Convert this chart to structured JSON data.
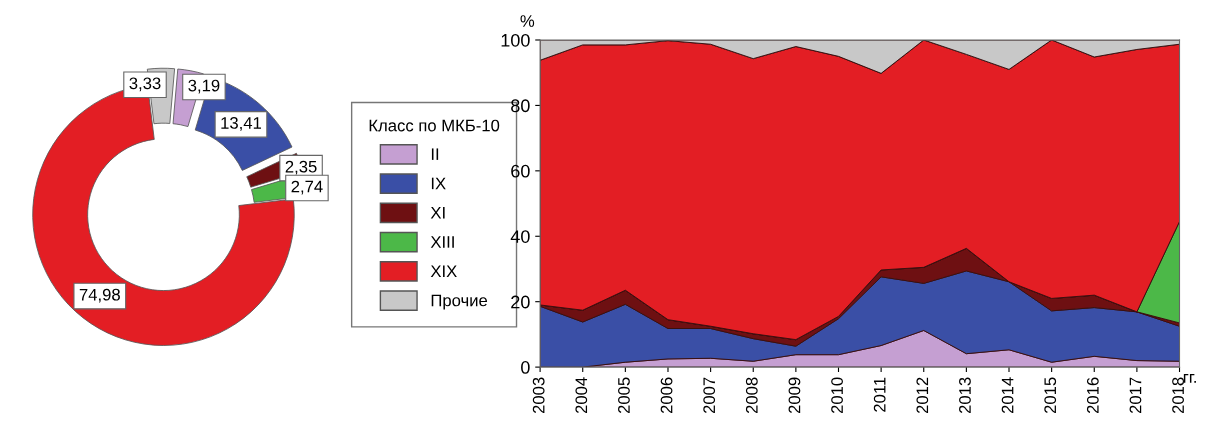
{
  "chart_data": [
    {
      "type": "donut",
      "legend_title": "Класс по МКБ-10",
      "legend": "right",
      "categories": [
        "II",
        "IX",
        "XI",
        "XIII",
        "XIX",
        "Прочие"
      ],
      "values": [
        3.19,
        13.41,
        2.35,
        2.74,
        74.98,
        3.33
      ],
      "colors": [
        "#c59fd2",
        "#3a4fa6",
        "#6e1012",
        "#4cb848",
        "#e31e24",
        "#c8c8c8"
      ],
      "value_labels": [
        "3,19",
        "13,41",
        "2,35",
        "2,74",
        "74,98",
        "3,33"
      ]
    },
    {
      "type": "area",
      "stacked": true,
      "ylabel": "%",
      "xlabel": "гг.",
      "ylim": [
        0,
        100
      ],
      "yticks": [
        0,
        20,
        40,
        60,
        80,
        100
      ],
      "grid": false,
      "categories": [
        "2003",
        "2004",
        "2005",
        "2006",
        "2007",
        "2008",
        "2009",
        "2010",
        "2011",
        "2012",
        "2013",
        "2014",
        "2015",
        "2016",
        "2017",
        "2018"
      ],
      "series": [
        {
          "color": "#c59fd2",
          "values": [
            0,
            0,
            1.5,
            2.5,
            2.7,
            1.8,
            3.8,
            3.8,
            6.6,
            11.2,
            4.1,
            5.3,
            1.5,
            3.3,
            2.0,
            1.8
          ]
        },
        {
          "color": "#3a4fa6",
          "values": [
            18.6,
            13.8,
            17.7,
            9.3,
            9.1,
            6.9,
            2.6,
            11.0,
            21.0,
            14.4,
            25.3,
            20.8,
            15.7,
            14.9,
            14.9,
            10.7
          ]
        },
        {
          "color": "#6e1012",
          "values": [
            0.4,
            3.6,
            4.3,
            2.7,
            0.7,
            1.5,
            2.0,
            0.7,
            2.1,
            4.9,
            6.9,
            0,
            3.8,
            3.8,
            0,
            1.0
          ]
        },
        {
          "color": "#4cb848",
          "values": [
            0,
            0,
            0,
            0,
            0,
            0,
            0,
            0,
            0,
            0,
            0,
            0,
            0,
            0,
            0,
            31.0
          ]
        },
        {
          "color": "#e31e24",
          "values": [
            74.8,
            81.1,
            75.0,
            85.3,
            86.2,
            84.1,
            89.6,
            79.5,
            60.1,
            69.5,
            59.3,
            64.9,
            79.0,
            72.8,
            80.2,
            54.2
          ]
        },
        {
          "color": "#c8c8c8",
          "values": [
            6.2,
            1.5,
            1.5,
            0.2,
            1.3,
            5.7,
            2.0,
            5.0,
            10.2,
            0,
            4.4,
            9.0,
            0,
            5.2,
            2.9,
            1.3
          ]
        }
      ]
    }
  ]
}
